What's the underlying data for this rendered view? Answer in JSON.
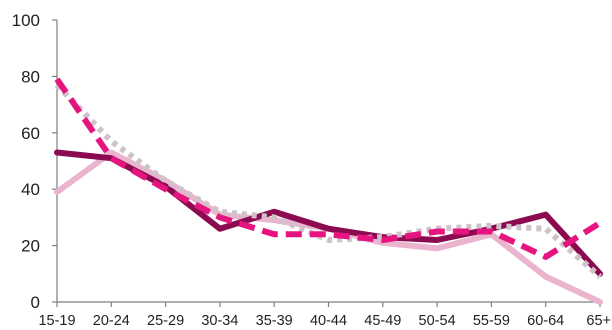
{
  "chart_data": {
    "type": "line",
    "categories": [
      "15-19",
      "20-24",
      "25-29",
      "30-34",
      "35-39",
      "40-44",
      "45-49",
      "50-54",
      "55-59",
      "60-64",
      "65+"
    ],
    "ylim": [
      0,
      100
    ],
    "yticks": [
      0,
      20,
      40,
      60,
      80,
      100
    ],
    "grid": false,
    "legend": "none",
    "series": [
      {
        "color": "#8b0a50",
        "style": "solid",
        "values": [
          53,
          51,
          41,
          26,
          32,
          26,
          23,
          22,
          26,
          31,
          10
        ]
      },
      {
        "color": "#eab4cf",
        "style": "solid",
        "values": [
          39,
          53,
          43,
          31,
          29,
          26,
          21,
          19,
          24,
          9,
          0
        ]
      },
      {
        "color": "#cfc3ca",
        "style": "dotted",
        "values": [
          77,
          57,
          43,
          32,
          30,
          22,
          23,
          26,
          27,
          26,
          9
        ]
      },
      {
        "color": "#e6147f",
        "style": "dashed",
        "values": [
          79,
          51,
          40,
          30,
          24,
          24,
          22,
          25,
          25,
          16,
          28
        ]
      }
    ]
  }
}
